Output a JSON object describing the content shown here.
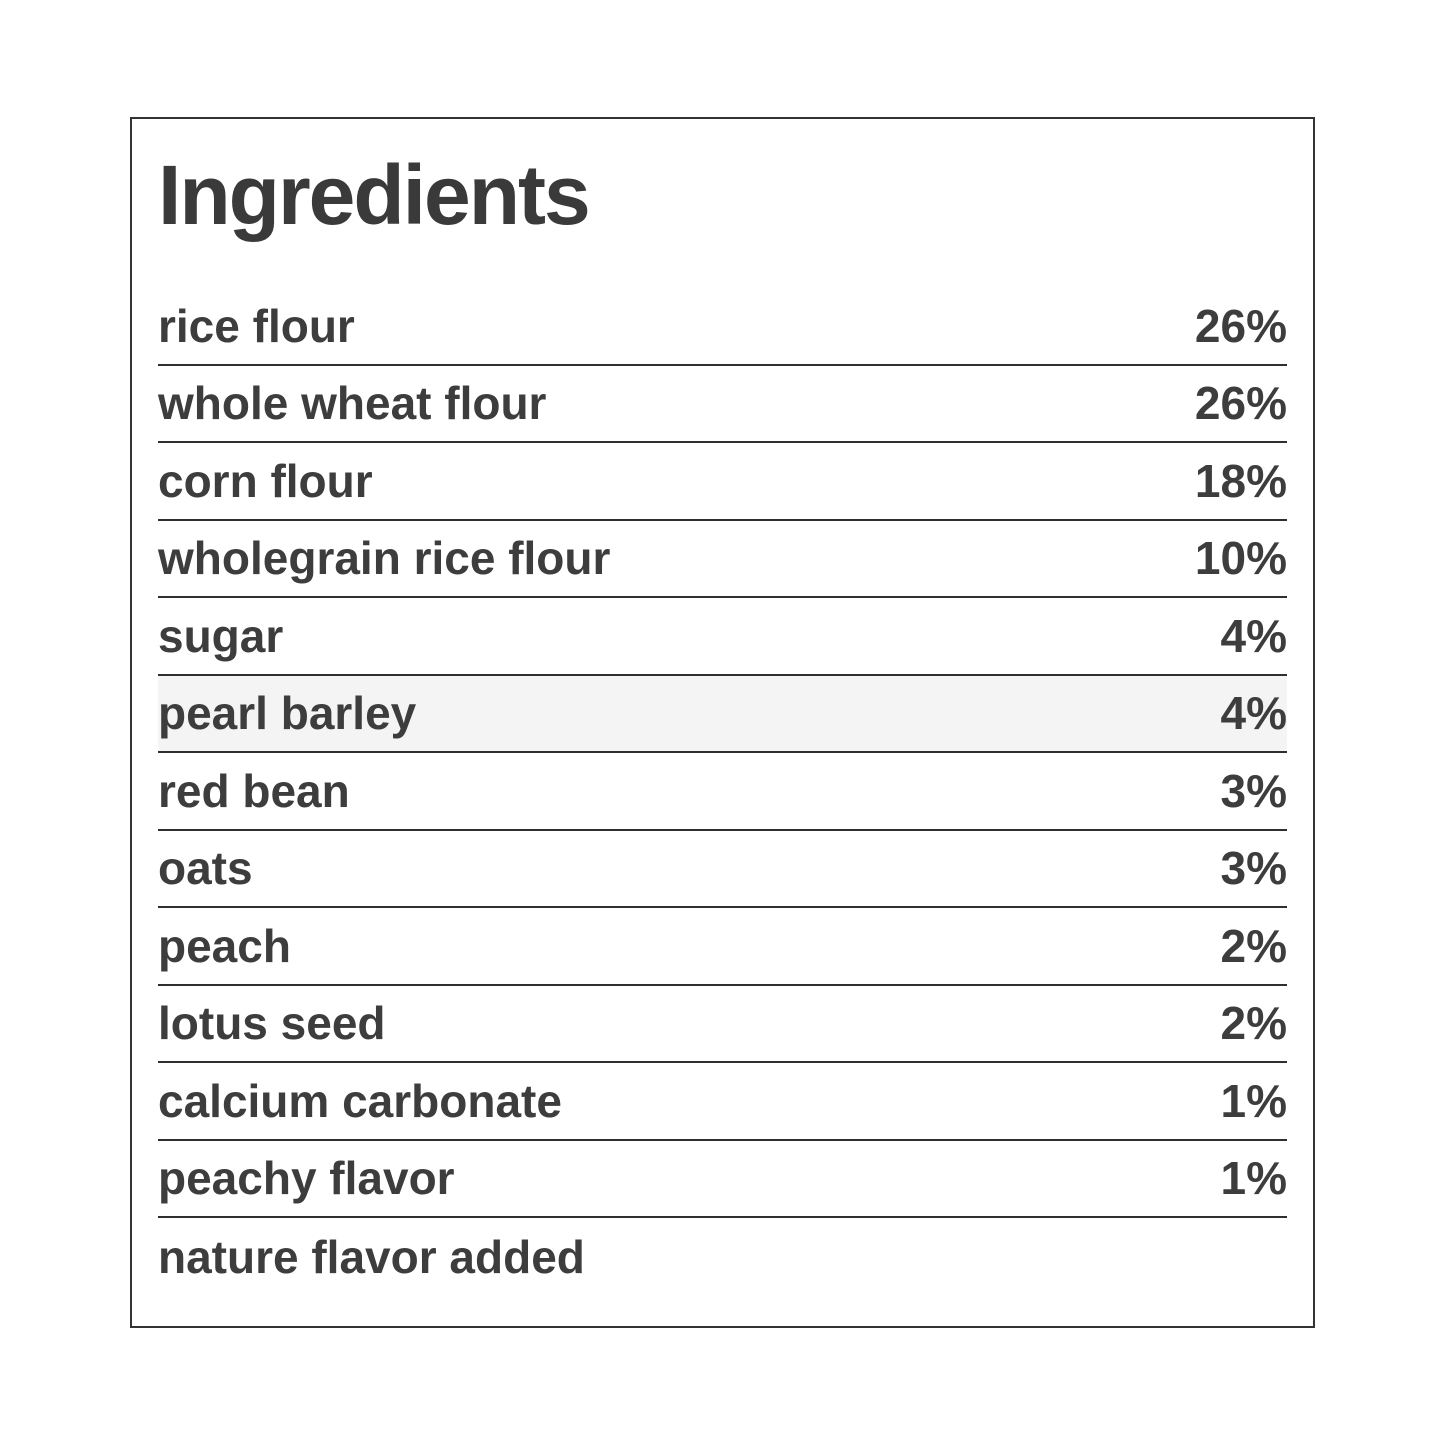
{
  "title": "Ingredients",
  "table": {
    "rows": [
      {
        "name": "rice flour",
        "percent": "26%",
        "highlighted": false
      },
      {
        "name": "whole wheat flour",
        "percent": "26%",
        "highlighted": false
      },
      {
        "name": "corn flour",
        "percent": "18%",
        "highlighted": false
      },
      {
        "name": "wholegrain rice flour",
        "percent": "10%",
        "highlighted": false
      },
      {
        "name": "sugar",
        "percent": "4%",
        "highlighted": false
      },
      {
        "name": "pearl barley",
        "percent": "4%",
        "highlighted": true
      },
      {
        "name": "red bean",
        "percent": "3%",
        "highlighted": false
      },
      {
        "name": "oats",
        "percent": "3%",
        "highlighted": false
      },
      {
        "name": "peach",
        "percent": "2%",
        "highlighted": false
      },
      {
        "name": "lotus seed",
        "percent": "2%",
        "highlighted": false
      },
      {
        "name": "calcium carbonate",
        "percent": "1%",
        "highlighted": false
      },
      {
        "name": "peachy flavor",
        "percent": "1%",
        "highlighted": false
      },
      {
        "name": "nature flavor added",
        "percent": "",
        "highlighted": false
      }
    ]
  },
  "colors": {
    "background": "#ffffff",
    "card_border": "#333333",
    "title_text": "#3a3a3a",
    "row_text": "#3d3d3d",
    "divider": "#2f2f2f",
    "highlight_row_bg": "#f4f4f4"
  }
}
